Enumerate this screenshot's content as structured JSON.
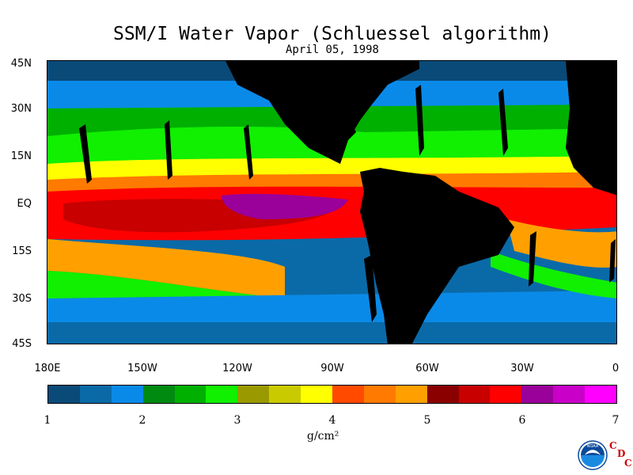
{
  "title": "SSM/I Water Vapor (Schluessel algorithm)",
  "date": "April 05, 1998",
  "y_axis_labels": [
    "45N",
    "30N",
    "15N",
    "EQ",
    "15S",
    "30S",
    "45S"
  ],
  "x_axis_labels": [
    "180E",
    "150W",
    "120W",
    "90W",
    "60W",
    "30W",
    "0"
  ],
  "colorbar": {
    "colors": [
      "#0a4a78",
      "#0a6aa8",
      "#0a8ae8",
      "#008a10",
      "#00b000",
      "#10f000",
      "#9a9a00",
      "#caca00",
      "#ffff00",
      "#ff4a00",
      "#ff7a00",
      "#ffa000",
      "#8a0000",
      "#c80000",
      "#ff0000",
      "#9a009a",
      "#c800c8",
      "#ff00ff"
    ],
    "labels": [
      "1",
      "2",
      "3",
      "4",
      "5",
      "6",
      "7"
    ],
    "unit": "g/cm²"
  },
  "logos": {
    "noaa": "NOAA",
    "cdc": [
      "C",
      "D",
      "C"
    ]
  }
}
